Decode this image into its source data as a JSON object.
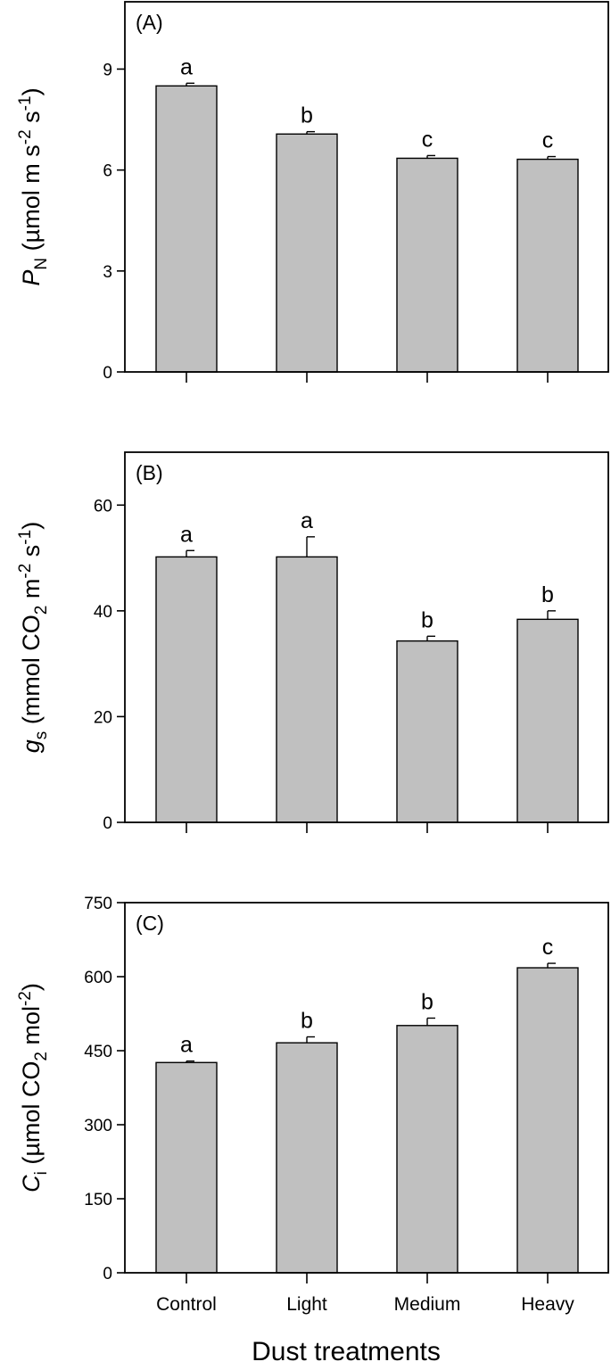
{
  "figure": {
    "xlabel": "Dust treatments",
    "bar_color": "#c0c0c0",
    "outline_color": "#000000"
  },
  "chart_data": [
    {
      "type": "bar",
      "panel": "(A)",
      "ylabel": {
        "symbol": "P",
        "symbol_sub": "N",
        "pre": " (µmol m",
        "sup1": "-2",
        "mid": " s",
        "sup2": "-1",
        "post": ")"
      },
      "categories": [
        "Control",
        "Light",
        "Medium",
        "Heavy"
      ],
      "values": [
        8.5,
        7.07,
        6.35,
        6.32
      ],
      "errors": [
        0.08,
        0.07,
        0.08,
        0.08
      ],
      "letters": [
        "a",
        "b",
        "c",
        "c"
      ],
      "ylim": [
        0,
        11.0
      ],
      "yticks": [
        0,
        3,
        6,
        9
      ],
      "ytick_labels": [
        "0",
        "3",
        "6",
        "9"
      ]
    },
    {
      "type": "bar",
      "panel": "(B)",
      "ylabel": {
        "symbol": "g",
        "symbol_sub": "s",
        "pre": " (mmol CO",
        "sub2": "2",
        "mid": " m",
        "sup1": "-2",
        "mid2": " s",
        "sup2": "-1",
        "post": ")"
      },
      "categories": [
        "Control",
        "Light",
        "Medium",
        "Heavy"
      ],
      "values": [
        50.2,
        50.2,
        34.3,
        38.4
      ],
      "errors": [
        1.2,
        3.8,
        0.9,
        1.6
      ],
      "letters": [
        "a",
        "a",
        "b",
        "b"
      ],
      "ylim": [
        0,
        70
      ],
      "yticks": [
        0,
        20,
        40,
        60
      ],
      "ytick_labels": [
        "0",
        "20",
        "40",
        "60"
      ]
    },
    {
      "type": "bar",
      "panel": "(C)",
      "ylabel": {
        "symbol": "C",
        "symbol_sub": "i",
        "pre": " (µmol CO",
        "sub2": "2",
        "mid": " mol",
        "sup1": "-2",
        "post": ")"
      },
      "categories": [
        "Control",
        "Light",
        "Medium",
        "Heavy"
      ],
      "values": [
        426,
        466,
        501,
        618
      ],
      "errors": [
        3,
        12,
        15,
        9
      ],
      "letters": [
        "a",
        "b",
        "b",
        "c"
      ],
      "ylim": [
        0,
        750
      ],
      "yticks": [
        0,
        150,
        300,
        450,
        600,
        750
      ],
      "ytick_labels": [
        "0",
        "150",
        "300",
        "450",
        "600",
        "750"
      ]
    }
  ]
}
